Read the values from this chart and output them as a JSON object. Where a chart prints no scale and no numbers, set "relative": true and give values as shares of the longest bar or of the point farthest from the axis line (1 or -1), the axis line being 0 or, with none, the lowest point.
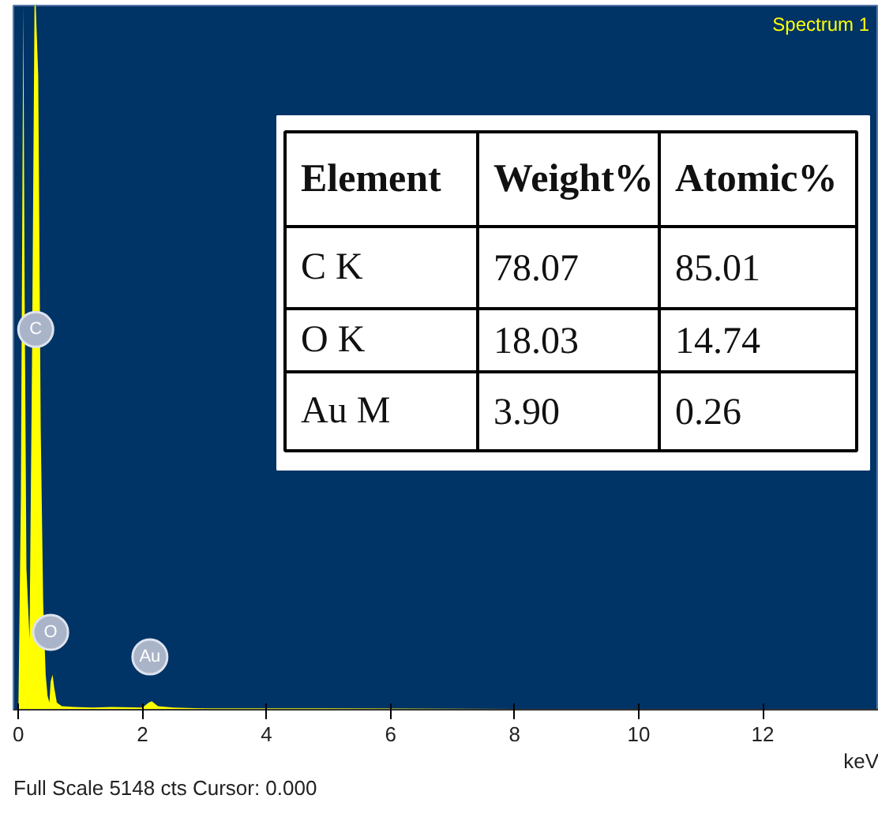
{
  "chart_data": {
    "type": "area",
    "title": "Spectrum 1",
    "xlabel": "keV",
    "relative": true,
    "color": "#ffff00",
    "x": [
      0,
      0.04,
      0.08,
      0.1,
      0.13,
      0.18,
      0.22,
      0.26,
      0.28,
      0.32,
      0.36,
      0.4,
      0.44,
      0.47,
      0.5,
      0.52,
      0.55,
      0.58,
      0.62,
      0.7,
      0.9,
      1.2,
      1.5,
      2.0,
      2.1,
      2.15,
      2.25,
      2.5,
      3.0,
      5.0,
      8.0,
      11.0,
      13.87
    ],
    "values": [
      0,
      0.3,
      1,
      0.6,
      0.2,
      0.1,
      0.5,
      1,
      1,
      0.9,
      0.4,
      0.15,
      0.05,
      0.02,
      0.01,
      0.04,
      0.05,
      0.03,
      0.01,
      0.005,
      0.004,
      0.003,
      0.004,
      0.003,
      0.01,
      0.012,
      0.005,
      0.003,
      0.002,
      0.002,
      0.001,
      0.001,
      0.001
    ],
    "xlim": [
      -0.08,
      13.87
    ],
    "xticks": [
      0,
      2,
      4,
      6,
      8,
      10,
      12
    ],
    "grid": false,
    "annotations": [
      {
        "text": "C",
        "x": 0.28,
        "y": 0.54
      },
      {
        "text": "O",
        "x": 0.52,
        "y": 0.11
      },
      {
        "text": "Au",
        "x": 2.12,
        "y": 0.075
      },
      "Full Scale 5148 cts Cursor: 0.000",
      "Element",
      "Weight%",
      "Atomic%",
      "C K",
      "78.07",
      "85.01",
      "O K",
      "18.03",
      "14.74",
      "Au M",
      "3.90",
      "0.26"
    ]
  }
}
